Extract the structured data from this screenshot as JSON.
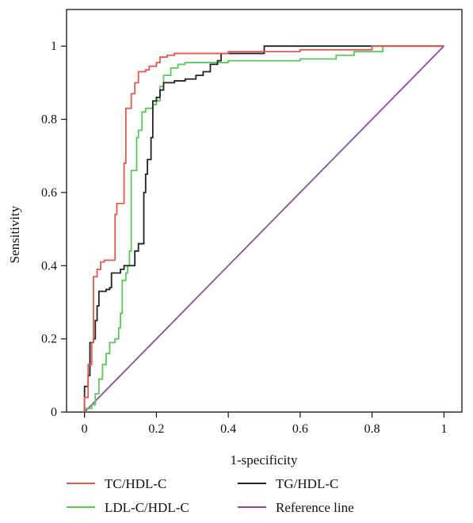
{
  "chart_data": {
    "type": "line",
    "xlabel": "1-specificity",
    "ylabel": "Sensitivity",
    "xlim": [
      -0.05,
      1.05
    ],
    "ylim": [
      0,
      1.1
    ],
    "x_ticks": [
      0,
      0.2,
      0.4,
      0.6,
      0.8,
      1
    ],
    "x_tick_labels": [
      "0",
      "0.2",
      "0.4",
      "0.6",
      "0.8",
      "1"
    ],
    "y_ticks": [
      0,
      0.2,
      0.4,
      0.6,
      0.8,
      1
    ],
    "y_tick_labels": [
      "0",
      "0.2",
      "0.4",
      "0.6",
      "0.8",
      "1"
    ],
    "grid": false,
    "legend_position": "bottom",
    "series": [
      {
        "name": "TC/HDL-C",
        "color": "#e05a55",
        "points": [
          [
            0,
            0
          ],
          [
            0,
            0.04
          ],
          [
            0.01,
            0.04
          ],
          [
            0.01,
            0.13
          ],
          [
            0.02,
            0.13
          ],
          [
            0.02,
            0.19
          ],
          [
            0.025,
            0.19
          ],
          [
            0.025,
            0.37
          ],
          [
            0.035,
            0.37
          ],
          [
            0.035,
            0.39
          ],
          [
            0.045,
            0.39
          ],
          [
            0.045,
            0.41
          ],
          [
            0.055,
            0.41
          ],
          [
            0.055,
            0.415
          ],
          [
            0.085,
            0.415
          ],
          [
            0.085,
            0.54
          ],
          [
            0.09,
            0.54
          ],
          [
            0.09,
            0.57
          ],
          [
            0.11,
            0.57
          ],
          [
            0.11,
            0.68
          ],
          [
            0.115,
            0.68
          ],
          [
            0.115,
            0.83
          ],
          [
            0.13,
            0.83
          ],
          [
            0.13,
            0.87
          ],
          [
            0.14,
            0.87
          ],
          [
            0.14,
            0.9
          ],
          [
            0.15,
            0.9
          ],
          [
            0.15,
            0.93
          ],
          [
            0.17,
            0.93
          ],
          [
            0.17,
            0.935
          ],
          [
            0.18,
            0.935
          ],
          [
            0.18,
            0.945
          ],
          [
            0.2,
            0.945
          ],
          [
            0.2,
            0.955
          ],
          [
            0.21,
            0.955
          ],
          [
            0.21,
            0.97
          ],
          [
            0.23,
            0.97
          ],
          [
            0.23,
            0.975
          ],
          [
            0.25,
            0.975
          ],
          [
            0.25,
            0.98
          ],
          [
            0.4,
            0.98
          ],
          [
            0.4,
            0.985
          ],
          [
            0.6,
            0.985
          ],
          [
            0.6,
            0.99
          ],
          [
            0.8,
            0.99
          ],
          [
            0.8,
            1
          ],
          [
            1,
            1
          ]
        ]
      },
      {
        "name": "TG/HDL-C",
        "color": "#222222",
        "points": [
          [
            0,
            0
          ],
          [
            0,
            0.07
          ],
          [
            0.01,
            0.07
          ],
          [
            0.01,
            0.1
          ],
          [
            0.015,
            0.1
          ],
          [
            0.015,
            0.19
          ],
          [
            0.025,
            0.19
          ],
          [
            0.025,
            0.2
          ],
          [
            0.03,
            0.2
          ],
          [
            0.03,
            0.25
          ],
          [
            0.035,
            0.25
          ],
          [
            0.035,
            0.29
          ],
          [
            0.04,
            0.29
          ],
          [
            0.04,
            0.33
          ],
          [
            0.06,
            0.33
          ],
          [
            0.06,
            0.335
          ],
          [
            0.07,
            0.335
          ],
          [
            0.07,
            0.34
          ],
          [
            0.075,
            0.34
          ],
          [
            0.075,
            0.38
          ],
          [
            0.1,
            0.38
          ],
          [
            0.1,
            0.39
          ],
          [
            0.11,
            0.39
          ],
          [
            0.11,
            0.4
          ],
          [
            0.14,
            0.4
          ],
          [
            0.14,
            0.44
          ],
          [
            0.15,
            0.44
          ],
          [
            0.15,
            0.46
          ],
          [
            0.165,
            0.46
          ],
          [
            0.165,
            0.6
          ],
          [
            0.17,
            0.6
          ],
          [
            0.17,
            0.65
          ],
          [
            0.175,
            0.65
          ],
          [
            0.175,
            0.69
          ],
          [
            0.185,
            0.69
          ],
          [
            0.185,
            0.75
          ],
          [
            0.19,
            0.75
          ],
          [
            0.19,
            0.85
          ],
          [
            0.2,
            0.85
          ],
          [
            0.2,
            0.86
          ],
          [
            0.21,
            0.86
          ],
          [
            0.21,
            0.88
          ],
          [
            0.22,
            0.88
          ],
          [
            0.22,
            0.9
          ],
          [
            0.25,
            0.9
          ],
          [
            0.25,
            0.905
          ],
          [
            0.28,
            0.905
          ],
          [
            0.28,
            0.91
          ],
          [
            0.31,
            0.91
          ],
          [
            0.31,
            0.92
          ],
          [
            0.33,
            0.92
          ],
          [
            0.33,
            0.93
          ],
          [
            0.35,
            0.93
          ],
          [
            0.35,
            0.95
          ],
          [
            0.37,
            0.95
          ],
          [
            0.37,
            0.96
          ],
          [
            0.38,
            0.96
          ],
          [
            0.38,
            0.98
          ],
          [
            0.5,
            0.98
          ],
          [
            0.5,
            1
          ],
          [
            1,
            1
          ]
        ]
      },
      {
        "name": "LDL-C/HDL-C",
        "color": "#5cc55c",
        "points": [
          [
            0,
            0
          ],
          [
            0,
            0.01
          ],
          [
            0.02,
            0.01
          ],
          [
            0.02,
            0.02
          ],
          [
            0.03,
            0.02
          ],
          [
            0.03,
            0.05
          ],
          [
            0.04,
            0.05
          ],
          [
            0.04,
            0.09
          ],
          [
            0.05,
            0.09
          ],
          [
            0.05,
            0.13
          ],
          [
            0.06,
            0.13
          ],
          [
            0.06,
            0.16
          ],
          [
            0.07,
            0.16
          ],
          [
            0.07,
            0.19
          ],
          [
            0.085,
            0.19
          ],
          [
            0.085,
            0.2
          ],
          [
            0.095,
            0.2
          ],
          [
            0.095,
            0.23
          ],
          [
            0.1,
            0.23
          ],
          [
            0.1,
            0.27
          ],
          [
            0.105,
            0.27
          ],
          [
            0.105,
            0.36
          ],
          [
            0.115,
            0.36
          ],
          [
            0.115,
            0.38
          ],
          [
            0.12,
            0.38
          ],
          [
            0.12,
            0.4
          ],
          [
            0.125,
            0.4
          ],
          [
            0.125,
            0.44
          ],
          [
            0.13,
            0.44
          ],
          [
            0.13,
            0.66
          ],
          [
            0.145,
            0.66
          ],
          [
            0.145,
            0.75
          ],
          [
            0.15,
            0.75
          ],
          [
            0.15,
            0.77
          ],
          [
            0.16,
            0.77
          ],
          [
            0.16,
            0.82
          ],
          [
            0.17,
            0.82
          ],
          [
            0.17,
            0.83
          ],
          [
            0.19,
            0.83
          ],
          [
            0.19,
            0.84
          ],
          [
            0.2,
            0.84
          ],
          [
            0.2,
            0.85
          ],
          [
            0.21,
            0.85
          ],
          [
            0.21,
            0.89
          ],
          [
            0.22,
            0.89
          ],
          [
            0.22,
            0.92
          ],
          [
            0.24,
            0.92
          ],
          [
            0.24,
            0.94
          ],
          [
            0.26,
            0.94
          ],
          [
            0.26,
            0.95
          ],
          [
            0.28,
            0.95
          ],
          [
            0.28,
            0.955
          ],
          [
            0.4,
            0.955
          ],
          [
            0.4,
            0.96
          ],
          [
            0.6,
            0.96
          ],
          [
            0.6,
            0.965
          ],
          [
            0.7,
            0.965
          ],
          [
            0.7,
            0.975
          ],
          [
            0.75,
            0.975
          ],
          [
            0.75,
            0.985
          ],
          [
            0.83,
            0.985
          ],
          [
            0.83,
            1
          ],
          [
            1,
            1
          ]
        ]
      },
      {
        "name": "Reference line",
        "color": "#8b4f9a",
        "points": [
          [
            0,
            0
          ],
          [
            1,
            1
          ]
        ]
      }
    ],
    "legend": [
      {
        "label": "TC/HDL-C",
        "color": "#e05a55"
      },
      {
        "label": "TG/HDL-C",
        "color": "#222222"
      },
      {
        "label": "LDL-C/HDL-C",
        "color": "#5cc55c"
      },
      {
        "label": "Reference line",
        "color": "#8b4f9a"
      }
    ]
  }
}
